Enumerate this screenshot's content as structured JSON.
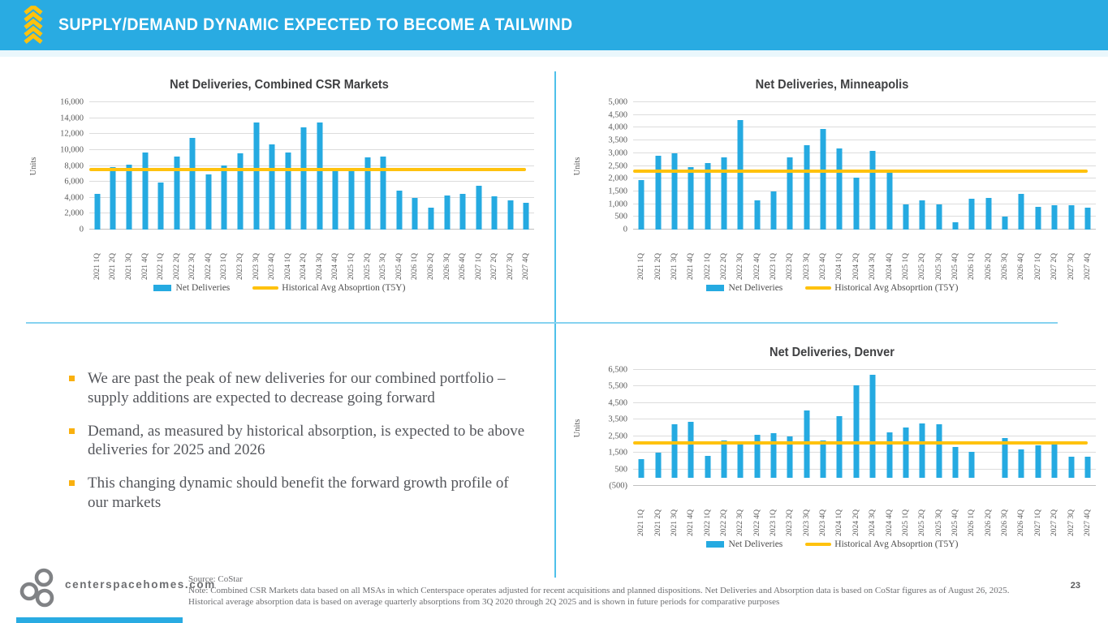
{
  "header": {
    "title": "SUPPLY/DEMAND DYNAMIC EXPECTED TO BECOME A TAILWIND"
  },
  "colors": {
    "accent_cyan": "#29ABE2",
    "bar_blue": "#25AAE1",
    "avg_yellow": "#FFC20E",
    "divider_vertical": "#4FC0EA",
    "divider_horizontal": "#86D2F0"
  },
  "bullets": [
    "We are past the peak of new deliveries for our combined portfolio – supply additions are expected to decrease going forward",
    "Demand, as measured by historical absorption, is expected to be above deliveries for 2025 and 2026",
    "This changing dynamic should benefit the forward growth profile of our markets"
  ],
  "footer": {
    "website": "centerspacehomes.com",
    "source": "Source: CoStar",
    "note": "Note: Combined CSR Markets data based on all MSAs in which Centerspace operates adjusted for recent acquisitions and planned dispositions. Net Deliveries and Absorption data is based on CoStar figures as of August 26, 2025. Historical average absorption data is based on average quarterly absorptions from 3Q 2020 through 2Q 2025 and is shown in future periods for comparative purposes",
    "page_number": "23"
  },
  "chart_data": [
    {
      "type": "bar",
      "title": "Net Deliveries, Combined CSR Markets",
      "ylabel": "Units",
      "ymin": 0,
      "ymax": 16000,
      "ytick_step": 2000,
      "ytick_labels": [
        "16,000",
        "14,000",
        "12,000",
        "10,000",
        "8,000",
        "6,000",
        "4,000",
        "2,000",
        "0"
      ],
      "categories": [
        "2021 1Q",
        "2021 2Q",
        "2021 3Q",
        "2021 4Q",
        "2022 1Q",
        "2022 2Q",
        "2022 3Q",
        "2022 4Q",
        "2023 1Q",
        "2023 2Q",
        "2023 3Q",
        "2023 4Q",
        "2024 1Q",
        "2024 2Q",
        "2024 3Q",
        "2024 4Q",
        "2025 1Q",
        "2025 2Q",
        "2025 3Q",
        "2025 4Q",
        "2026 1Q",
        "2026 2Q",
        "2026 3Q",
        "2026 4Q",
        "2027 1Q",
        "2027 2Q",
        "2027 3Q",
        "2027 4Q"
      ],
      "values": [
        4500,
        7800,
        8200,
        9700,
        5900,
        9200,
        11500,
        6900,
        8100,
        9600,
        13500,
        10700,
        9700,
        12800,
        13500,
        7400,
        7400,
        9100,
        9200,
        4900,
        4000,
        2800,
        4300,
        4500,
        5500,
        4200,
        3700,
        3400
      ],
      "avg_line": {
        "label": "Historical Avg Absoprtion (T5Y)",
        "value": 7500
      },
      "legend": {
        "series": "Net Deliveries",
        "line": "Historical Avg Absoprtion (T5Y)"
      },
      "grid": true,
      "legend_position": "bottom"
    },
    {
      "type": "bar",
      "title": "Net Deliveries, Minneapolis",
      "ylabel": "Units",
      "ymin": 0,
      "ymax": 5000,
      "ytick_step": 500,
      "ytick_labels": [
        "5,000",
        "4,500",
        "4,000",
        "3,500",
        "3,000",
        "2,500",
        "2,000",
        "1,500",
        "1,000",
        "500",
        "0"
      ],
      "categories": [
        "2021 1Q",
        "2021 2Q",
        "2021 3Q",
        "2021 4Q",
        "2022 1Q",
        "2022 2Q",
        "2022 3Q",
        "2022 4Q",
        "2023 1Q",
        "2023 2Q",
        "2023 3Q",
        "2023 4Q",
        "2024 1Q",
        "2024 2Q",
        "2024 3Q",
        "2024 4Q",
        "2025 1Q",
        "2025 2Q",
        "2025 3Q",
        "2025 4Q",
        "2026 1Q",
        "2026 2Q",
        "2026 3Q",
        "2026 4Q",
        "2027 1Q",
        "2027 2Q",
        "2027 3Q",
        "2027 4Q"
      ],
      "values": [
        1950,
        2900,
        3000,
        2450,
        2600,
        2850,
        4300,
        1150,
        1500,
        2850,
        3300,
        3950,
        3200,
        2050,
        3100,
        2250,
        1000,
        1150,
        1000,
        300,
        1200,
        1250,
        500,
        1400,
        900,
        950,
        950,
        850
      ],
      "avg_line": {
        "label": "Historical Avg Absoprtion (T5Y)",
        "value": 2300
      },
      "legend": {
        "series": "Net Deliveries",
        "line": "Historical Avg Absoprtion (T5Y)"
      },
      "grid": true,
      "legend_position": "bottom"
    },
    {
      "type": "bar",
      "title": "Net Deliveries, Denver",
      "ylabel": "Units",
      "ymin": -500,
      "ymax": 6500,
      "ytick_step": 1000,
      "ytick_labels": [
        "6,500",
        "5,500",
        "4,500",
        "3,500",
        "2,500",
        "1,500",
        "500",
        "(500)"
      ],
      "categories": [
        "2021 1Q",
        "2021 2Q",
        "2021 3Q",
        "2021 4Q",
        "2022 1Q",
        "2022 2Q",
        "2022 3Q",
        "2022 4Q",
        "2023 1Q",
        "2023 2Q",
        "2023 3Q",
        "2023 4Q",
        "2024 1Q",
        "2024 2Q",
        "2024 3Q",
        "2024 4Q",
        "2025 1Q",
        "2025 2Q",
        "2025 3Q",
        "2025 4Q",
        "2026 1Q",
        "2026 2Q",
        "2026 3Q",
        "2026 4Q",
        "2027 1Q",
        "2027 2Q",
        "2027 3Q",
        "2027 4Q"
      ],
      "values": [
        1100,
        1500,
        3200,
        3350,
        1300,
        2250,
        2050,
        2600,
        2700,
        2500,
        4050,
        2250,
        3700,
        5550,
        6200,
        2750,
        3050,
        3250,
        3200,
        1850,
        1550,
        0,
        2400,
        1700,
        1950,
        2100,
        1250,
        1250
      ],
      "avg_line": {
        "label": "Historical Avg Absoprtion (T5Y)",
        "value": 2100
      },
      "legend": {
        "series": "Net Deliveries",
        "line": "Historical Avg Absoprtion (T5Y)"
      },
      "grid": true,
      "legend_position": "bottom"
    }
  ]
}
